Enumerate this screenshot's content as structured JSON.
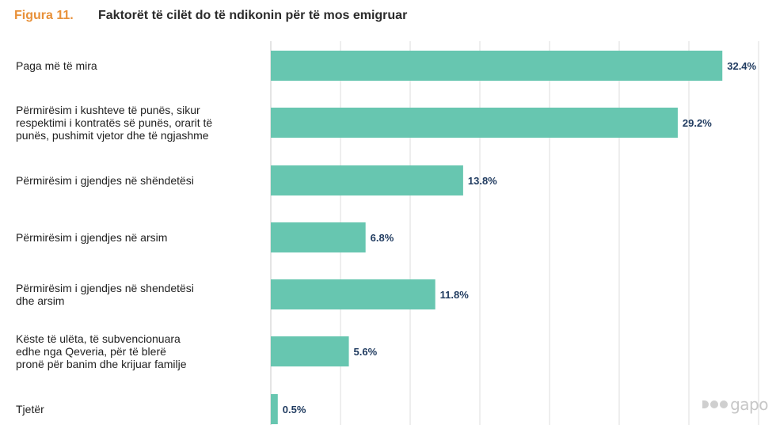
{
  "header": {
    "figure_label": "Figura 11.",
    "title": "Faktorët të cilët do të ndikonin për të mos emigruar"
  },
  "colors": {
    "bar": "#67c6b0",
    "value_label": "#1f3a5f",
    "grid": "#dcdcdc",
    "accent": "#e8913a"
  },
  "watermark": {
    "text": "gapo"
  },
  "chart_data": {
    "type": "bar",
    "orientation": "horizontal",
    "title": "Faktorët të cilët do të ndikonin për të mos emigruar",
    "categories": [
      "Paga më të mira",
      "Përmirësim i kushteve të punës, sikur\nrespektimi i kontratës së punës, orarit të\npunës, pushimit vjetor dhe të ngjashme",
      "Përmirësim i gjendjes në shëndetësi",
      "Përmirësim i gjendjes në arsim",
      "Përmirësim i gjendjes në shendetësi\ndhe arsim",
      "Këste të ulëta, të subvencionuara\nedhe nga Qeveria, për të blerë\npronë për banim dhe krijuar familje",
      "Tjetër"
    ],
    "values": [
      32.4,
      29.2,
      13.8,
      6.8,
      11.8,
      5.6,
      0.5
    ],
    "value_labels": [
      "32.4%",
      "29.2%",
      "13.8%",
      "6.8%",
      "11.8%",
      "5.6%",
      "0.5%"
    ],
    "unit": "%",
    "xlim": [
      0,
      35
    ],
    "grid": true
  }
}
